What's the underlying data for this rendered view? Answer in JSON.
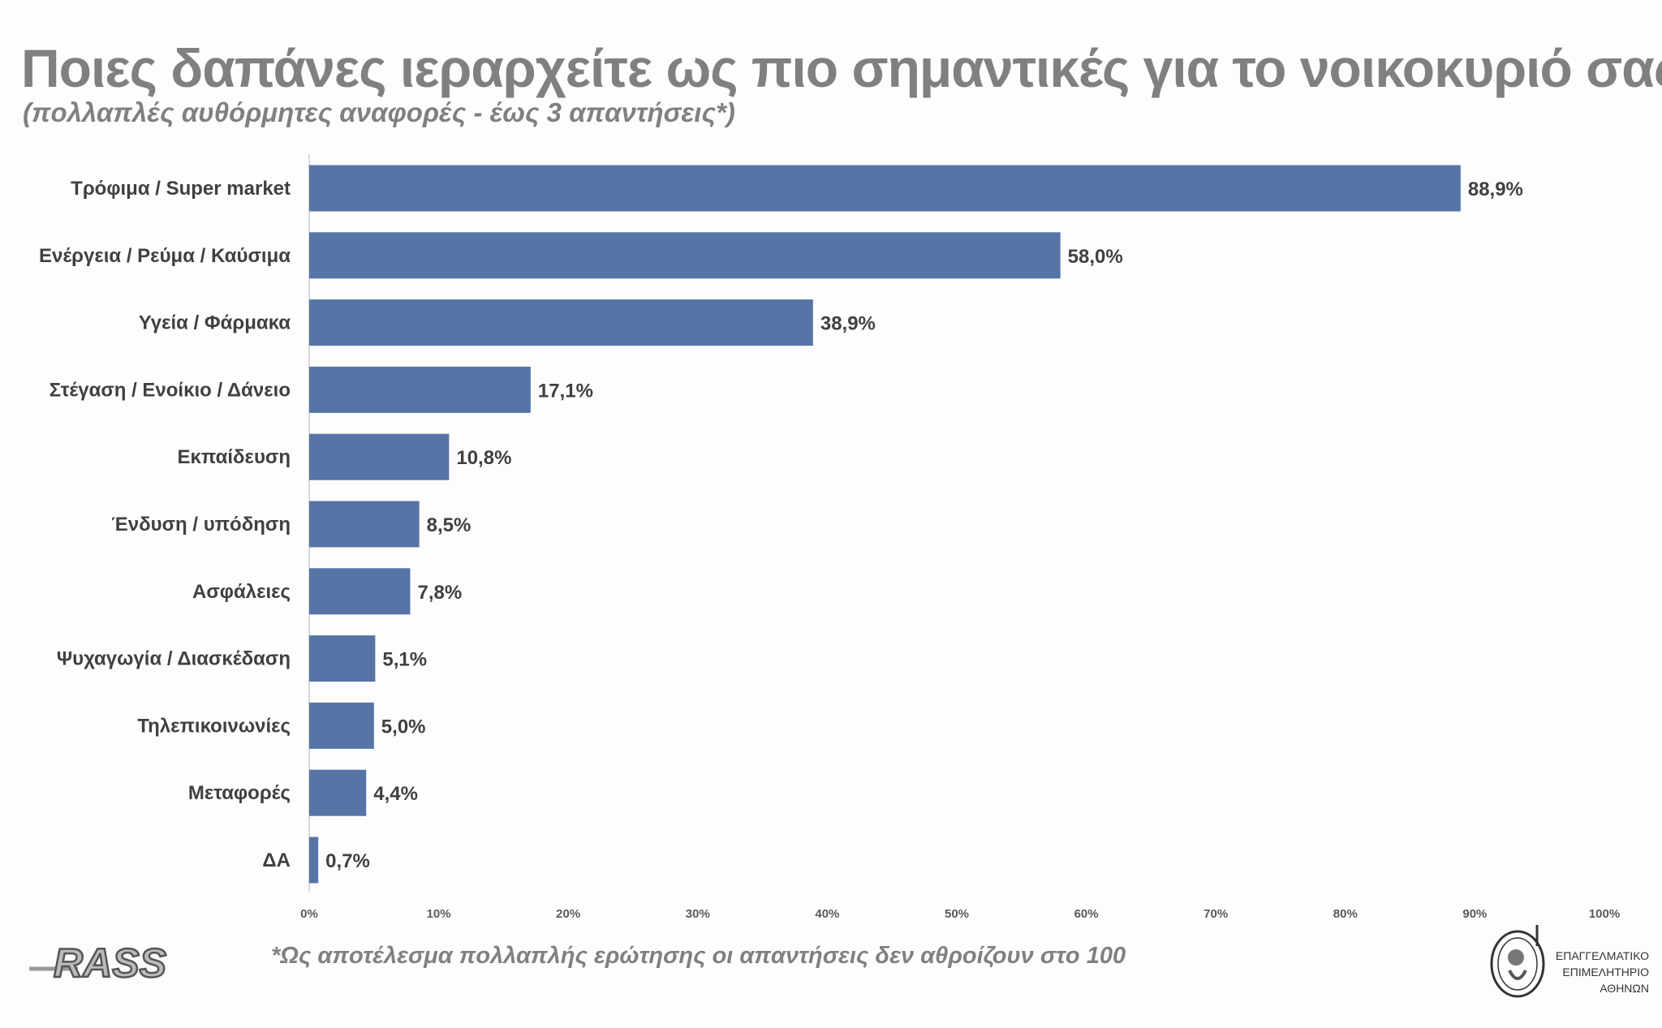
{
  "chart_data": {
    "type": "bar",
    "orientation": "horizontal",
    "title": "Ποιες δαπάνες ιεραρχείτε ως πιο σημαντικές για το νοικοκυριό σας;",
    "subtitle": "(πολλαπλές αυθόρμητες αναφορές - έως 3 απαντήσεις*)",
    "categories": [
      "Τρόφιμα / Super market",
      "Ενέργεια / Ρεύμα / Καύσιμα",
      "Υγεία / Φάρμακα",
      "Στέγαση / Ενοίκιο / Δάνειο",
      "Εκπαίδευση",
      "Ένδυση / υπόδηση",
      "Ασφάλειες",
      "Ψυχαγωγία / Διασκέδαση",
      "Τηλεπικοινωνίες",
      "Μεταφορές",
      "ΔΑ"
    ],
    "values": [
      88.9,
      58.0,
      38.9,
      17.1,
      10.8,
      8.5,
      7.8,
      5.1,
      5.0,
      4.4,
      0.7
    ],
    "value_labels": [
      "88,9%",
      "58,0%",
      "38,9%",
      "17,1%",
      "10,8%",
      "8,5%",
      "7,8%",
      "5,1%",
      "5,0%",
      "4,4%",
      "0,7%"
    ],
    "xlim": [
      0,
      100
    ],
    "xticks": [
      "0%",
      "10%",
      "20%",
      "30%",
      "40%",
      "50%",
      "60%",
      "70%",
      "80%",
      "90%",
      "100%"
    ],
    "xlabel": "",
    "ylabel": "",
    "grid": false,
    "bar_color": "#5674A6"
  },
  "footnote": "*Ως αποτέλεσμα πολλαπλής ερώτησης οι απαντήσεις δεν αθροίζουν στο 100",
  "logos": {
    "left": "RASS",
    "right": [
      "ΕΠΑΓΓΕΛΜΑΤΙΚΟ",
      "ΕΠΙΜΕΛΗΤΗΡΙΟ",
      "ΑΘΗΝΩΝ"
    ]
  }
}
